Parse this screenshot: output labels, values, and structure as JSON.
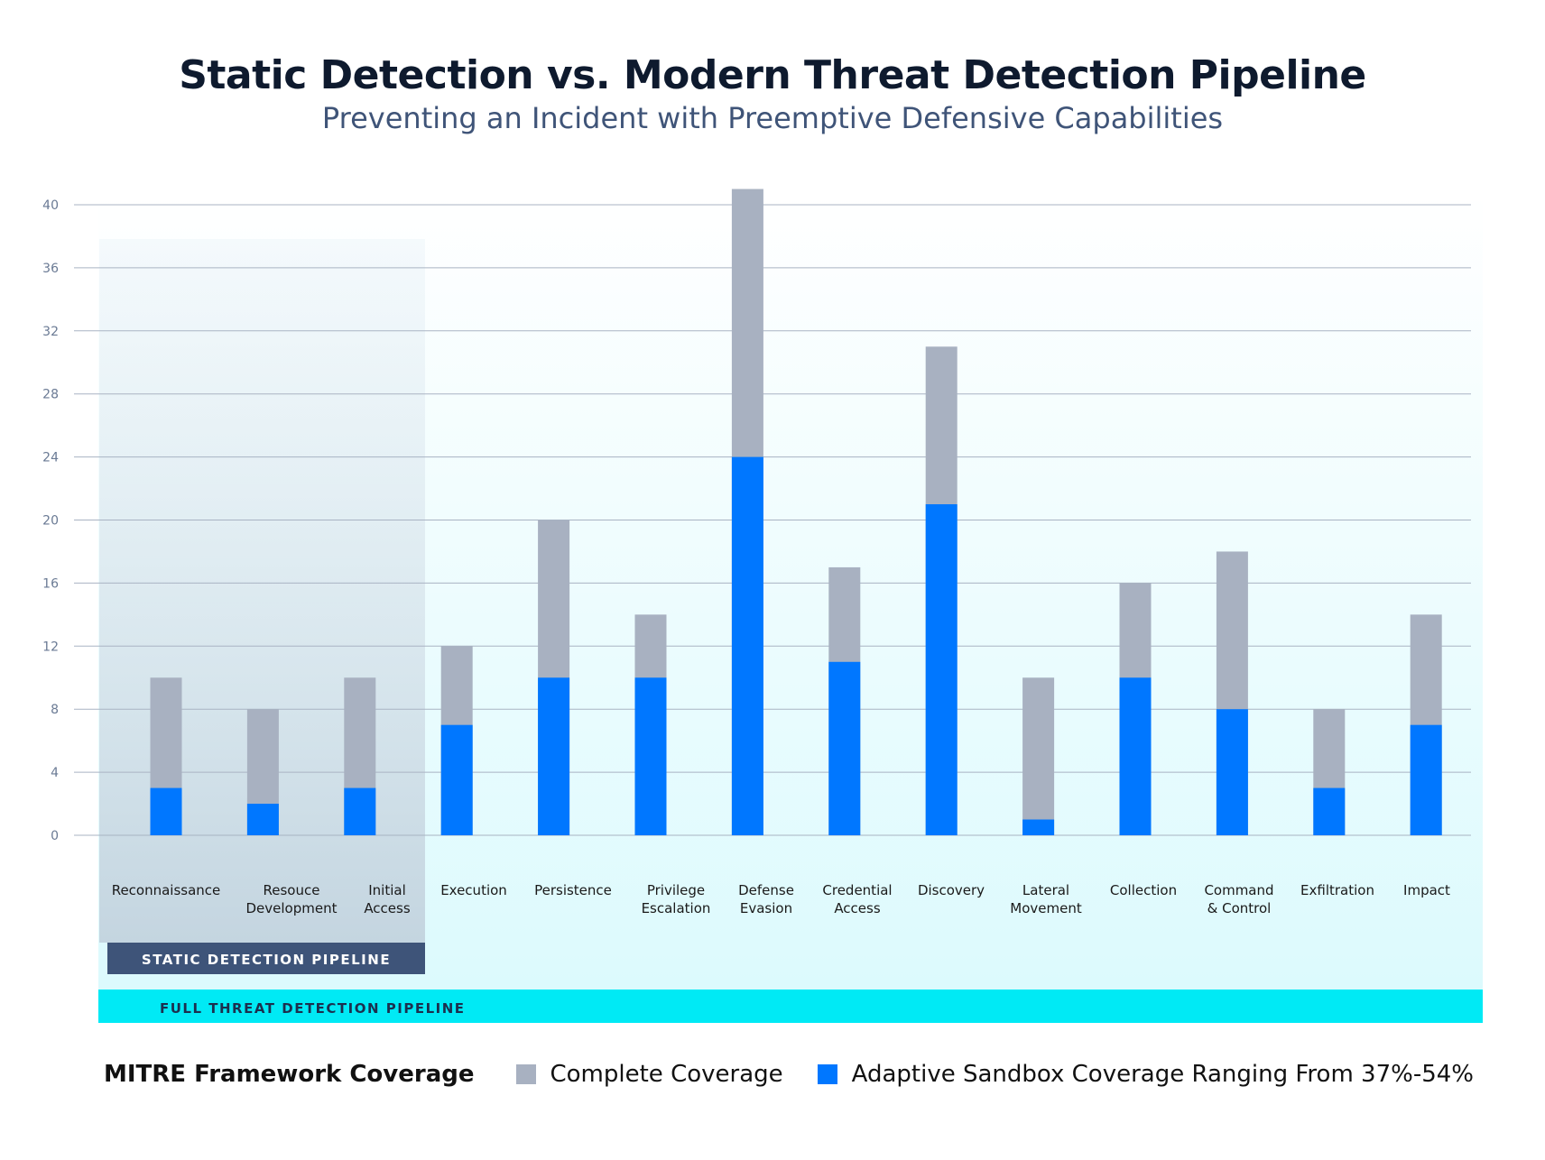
{
  "chart_data": {
    "type": "bar",
    "stacked": "overlay",
    "title": "Static Detection vs. Modern Threat Detection Pipeline",
    "subtitle": "Preventing an Incident with Preemptive Defensive Capabilities",
    "categories": [
      [
        "Reconnaissance"
      ],
      [
        "Resouce",
        "Development"
      ],
      [
        "Initial",
        "Access"
      ],
      [
        "Execution"
      ],
      [
        "Persistence"
      ],
      [
        "Privilege",
        "Escalation"
      ],
      [
        "Defense",
        "Evasion"
      ],
      [
        "Credential",
        "Access"
      ],
      [
        "Discovery"
      ],
      [
        "Lateral",
        "Movement"
      ],
      [
        "Collection"
      ],
      [
        "Command",
        "& Control"
      ],
      [
        "Exfiltration"
      ],
      [
        "Impact"
      ]
    ],
    "series": [
      {
        "name": "Complete Coverage",
        "color": "#a8b1c1",
        "values": [
          10,
          8,
          10,
          12,
          20,
          14,
          41,
          17,
          31,
          10,
          16,
          18,
          8,
          14
        ]
      },
      {
        "name": "Adaptive Sandbox Coverage Ranging From 37%-54%",
        "color": "#0077ff",
        "values": [
          3,
          2,
          3,
          7,
          10,
          10,
          24,
          11,
          21,
          1,
          10,
          8,
          3,
          7
        ]
      }
    ],
    "ylim": [
      0,
      40
    ],
    "yticks": [
      0,
      4,
      8,
      12,
      16,
      20,
      24,
      28,
      32,
      36,
      40
    ],
    "grid": true,
    "regions": [
      {
        "label": "STATIC DETECTION PIPELINE",
        "color": "#3e5479",
        "covers": [
          "Reconnaissance",
          "Resouce Development",
          "Initial Access"
        ]
      },
      {
        "label": "FULL THREAT DETECTION PIPELINE",
        "color": "#00eaf5",
        "covers": "all"
      }
    ],
    "legend": {
      "title": "MITRE Framework  Coverage",
      "placement": "bottom"
    }
  }
}
